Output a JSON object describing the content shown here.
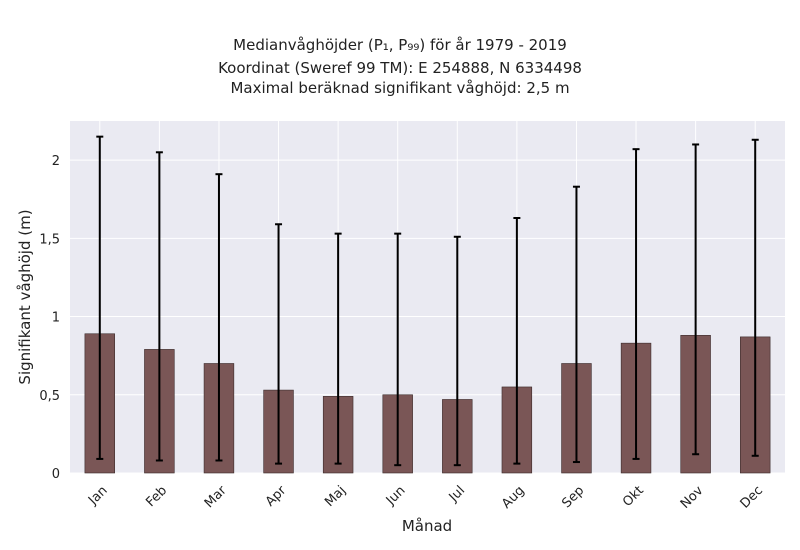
{
  "chart_data": {
    "type": "bar",
    "title_lines": [
      "Medianvåghöjder (P₁, P₉₉) för år 1979 - 2019",
      "Koordinat (Sweref 99 TM): E 254888, N 6334498",
      "Maximal beräknad signifikant våghöjd: 2,5 m"
    ],
    "xlabel": "Månad",
    "ylabel": "Signifikant våghöjd (m)",
    "categories": [
      "Jan",
      "Feb",
      "Mar",
      "Apr",
      "Maj",
      "Jun",
      "Jul",
      "Aug",
      "Sep",
      "Okt",
      "Nov",
      "Dec"
    ],
    "series": [
      {
        "values": [
          0.89,
          0.79,
          0.7,
          0.53,
          0.49,
          0.5,
          0.47,
          0.55,
          0.7,
          0.83,
          0.88,
          0.87
        ],
        "error_low": [
          0.09,
          0.08,
          0.08,
          0.06,
          0.06,
          0.05,
          0.05,
          0.06,
          0.07,
          0.09,
          0.12,
          0.11
        ],
        "error_high": [
          2.15,
          2.05,
          1.91,
          1.59,
          1.53,
          1.53,
          1.51,
          1.63,
          1.83,
          2.07,
          2.1,
          2.13
        ]
      }
    ],
    "yticks": [
      0,
      0.5,
      1,
      1.5,
      2
    ],
    "ytick_labels": [
      "0",
      "0,5",
      "1",
      "1,5",
      "2"
    ],
    "ylim": [
      0,
      2.25
    ],
    "grid": true,
    "colors": {
      "bar": "#7a5656",
      "bar_edge": "#3a2a2a",
      "background": "#eaeaf2",
      "grid": "#ffffff",
      "error": "#000000"
    }
  }
}
